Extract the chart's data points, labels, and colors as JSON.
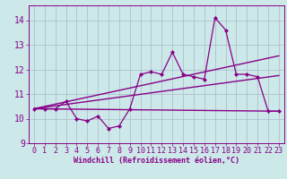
{
  "xlabel": "Windchill (Refroidissement éolien,°C)",
  "background_color": "#cce8e8",
  "grid_color": "#aab8cc",
  "line_color": "#880088",
  "xlim": [
    -0.5,
    23.5
  ],
  "ylim": [
    9.0,
    14.6
  ],
  "yticks": [
    9,
    10,
    11,
    12,
    13,
    14
  ],
  "xticks": [
    0,
    1,
    2,
    3,
    4,
    5,
    6,
    7,
    8,
    9,
    10,
    11,
    12,
    13,
    14,
    15,
    16,
    17,
    18,
    19,
    20,
    21,
    22,
    23
  ],
  "series1_x": [
    0,
    1,
    2,
    3,
    4,
    5,
    6,
    7,
    8,
    9,
    10,
    11,
    12,
    13,
    14,
    15,
    16,
    17,
    18,
    19,
    20,
    21,
    22,
    23
  ],
  "series1_y": [
    10.4,
    10.4,
    10.4,
    10.7,
    10.0,
    9.9,
    10.1,
    9.6,
    9.7,
    10.4,
    11.8,
    11.9,
    11.8,
    12.7,
    11.8,
    11.7,
    11.6,
    14.1,
    13.6,
    11.8,
    11.8,
    11.7,
    10.3,
    10.3
  ],
  "series2_x": [
    0,
    23
  ],
  "series2_y": [
    10.4,
    10.3
  ],
  "series3_x": [
    0,
    23
  ],
  "series3_y": [
    10.4,
    12.55
  ],
  "series4_x": [
    0,
    23
  ],
  "series4_y": [
    10.4,
    11.75
  ],
  "tick_fontsize": 6,
  "xlabel_fontsize": 6
}
